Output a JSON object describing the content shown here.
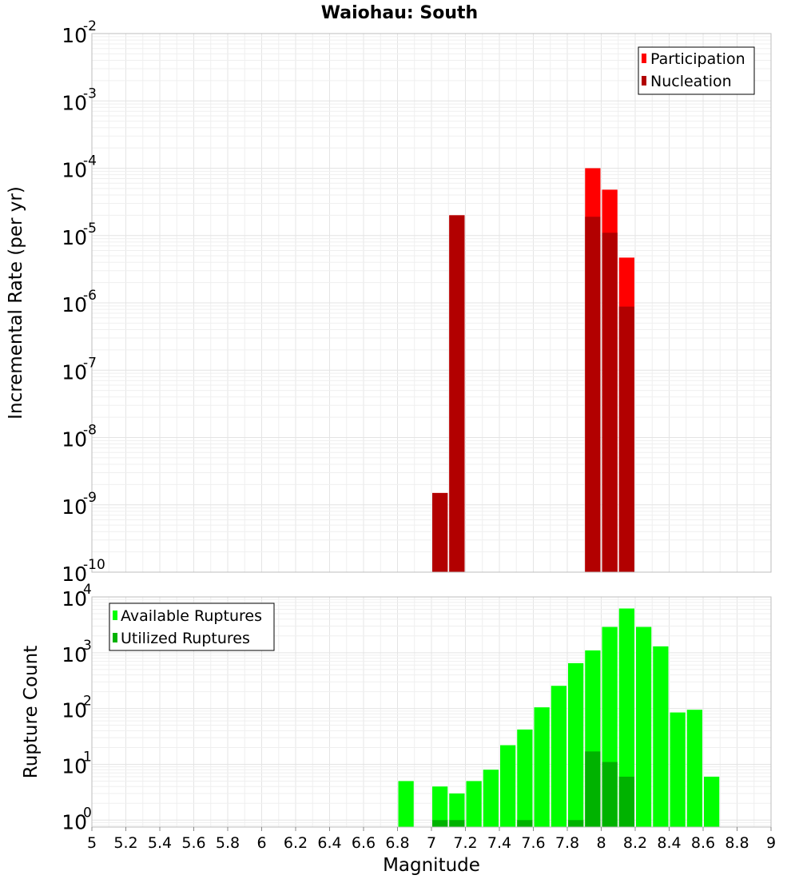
{
  "title": "Waiohau: South",
  "colors": {
    "participation": "#ff0000",
    "nucleation": "#b20000",
    "available": "#00ff00",
    "utilized": "#00b200"
  },
  "chart_data": [
    {
      "type": "bar",
      "ylabel": "Incremental Rate (per yr)",
      "yscale": "log",
      "ylim": [
        1e-10,
        0.01
      ],
      "xlim": [
        5,
        9
      ],
      "y_ticks": [
        {
          "base": "10",
          "exp": "-10"
        },
        {
          "base": "10",
          "exp": "-9"
        },
        {
          "base": "10",
          "exp": "-8"
        },
        {
          "base": "10",
          "exp": "-7"
        },
        {
          "base": "10",
          "exp": "-6"
        },
        {
          "base": "10",
          "exp": "-5"
        },
        {
          "base": "10",
          "exp": "-4"
        },
        {
          "base": "10",
          "exp": "-3"
        },
        {
          "base": "10",
          "exp": "-2"
        }
      ],
      "legend": {
        "placement": "top-right",
        "entries": [
          "Participation",
          "Nucleation"
        ]
      },
      "series": [
        {
          "name": "Participation",
          "x": [
            7.05,
            7.15,
            7.95,
            8.05,
            8.15
          ],
          "values": [
            1.5e-09,
            2e-05,
            0.0001,
            4.8e-05,
            4.7e-06
          ]
        },
        {
          "name": "Nucleation",
          "x": [
            7.05,
            7.15,
            7.95,
            8.05,
            8.15
          ],
          "values": [
            1.5e-09,
            2e-05,
            1.9e-05,
            1.1e-05,
            8.8e-07
          ]
        }
      ]
    },
    {
      "type": "bar",
      "ylabel": "Rupture Count",
      "xlabel": "Magnitude",
      "yscale": "log",
      "ylim": [
        0.75,
        10000
      ],
      "xlim": [
        5,
        9
      ],
      "x_ticks": [
        "5",
        "5.2",
        "5.4",
        "5.6",
        "5.8",
        "6",
        "6.2",
        "6.4",
        "6.6",
        "6.8",
        "7",
        "7.2",
        "7.4",
        "7.6",
        "7.8",
        "8",
        "8.2",
        "8.4",
        "8.6",
        "8.8",
        "9"
      ],
      "y_ticks": [
        {
          "base": "10",
          "exp": "0"
        },
        {
          "base": "10",
          "exp": "1"
        },
        {
          "base": "10",
          "exp": "2"
        },
        {
          "base": "10",
          "exp": "3"
        },
        {
          "base": "10",
          "exp": "4"
        }
      ],
      "legend": {
        "placement": "top-left",
        "entries": [
          "Available Ruptures",
          "Utilized Ruptures"
        ]
      },
      "series": [
        {
          "name": "Available Ruptures",
          "x": [
            6.85,
            7.05,
            7.15,
            7.25,
            7.35,
            7.45,
            7.55,
            7.65,
            7.75,
            7.85,
            7.95,
            8.05,
            8.15,
            8.25,
            8.35,
            8.45,
            8.55,
            8.65
          ],
          "values": [
            5,
            4,
            3,
            5,
            8,
            22,
            42,
            105,
            255,
            650,
            1100,
            2900,
            6200,
            2900,
            1300,
            85,
            95,
            6
          ]
        },
        {
          "name": "Utilized Ruptures",
          "x": [
            7.05,
            7.15,
            7.55,
            7.85,
            7.95,
            8.05,
            8.15
          ],
          "values": [
            1,
            1,
            1,
            1,
            17,
            11,
            6
          ]
        }
      ]
    }
  ]
}
